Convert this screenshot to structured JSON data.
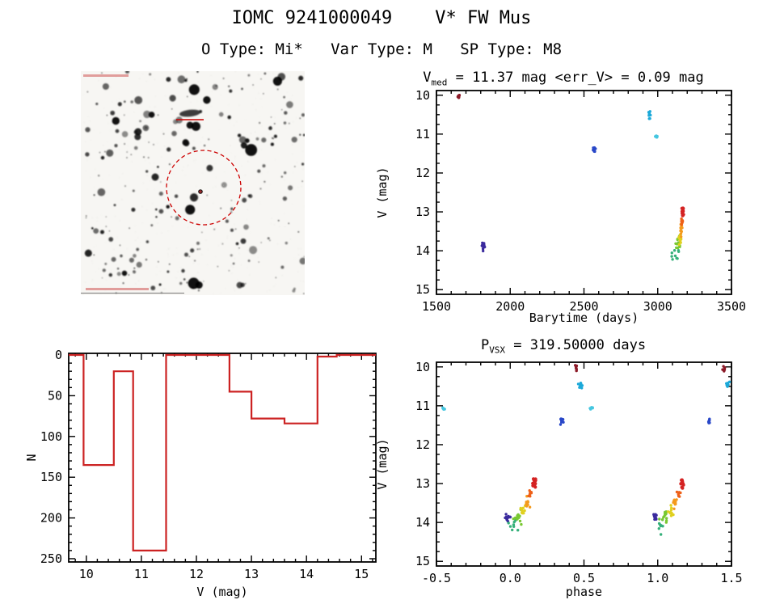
{
  "header": {
    "title": "IOMC 9241000049    V* FW Mus",
    "subtitle": "O Type: Mi*   Var Type: M   SP Type: M8"
  },
  "lightcurve_title": {
    "base": "V",
    "sub": "med",
    "rest": " = 11.37 mag <err_V> = 0.09 mag"
  },
  "phase_title": {
    "base": "P",
    "sub": "VSX",
    "rest": " = 319.50000 days"
  },
  "finder_chart": {
    "content": "grayscale star-field finder image",
    "marker_color": "#cc0000",
    "target_marker": "dashed red circle around target star"
  },
  "chart_data": [
    {
      "id": "lightcurve",
      "type": "scatter",
      "title": "V_med = 11.37 mag <err_V> = 0.09 mag",
      "xlabel": "Barytime (days)",
      "ylabel": "V (mag)",
      "xlim": [
        1500,
        3500
      ],
      "ylim": [
        10,
        15
      ],
      "y_axis_inverted_mag": true,
      "xticks": [
        "1500",
        "2000",
        "2500",
        "3000",
        "3500"
      ],
      "yticks": [
        "10",
        "11",
        "12",
        "13",
        "14",
        "15"
      ],
      "clusters": [
        {
          "x": 1650,
          "y": 10.05,
          "sx": 8,
          "sy": 0.08,
          "n": 8,
          "color": "#8c1a28"
        },
        {
          "x": 1818,
          "y": 13.88,
          "sx": 10,
          "sy": 0.1,
          "n": 16,
          "color": "#3a2a9d"
        },
        {
          "x": 2570,
          "y": 11.4,
          "sx": 8,
          "sy": 0.07,
          "n": 10,
          "color": "#2847c8"
        },
        {
          "x": 2945,
          "y": 10.5,
          "sx": 7,
          "sy": 0.11,
          "n": 12,
          "color": "#1ca9d9"
        },
        {
          "x": 2992,
          "y": 11.07,
          "sx": 7,
          "sy": 0.045,
          "n": 7,
          "color": "#45c6e0"
        },
        {
          "x": 3126,
          "y": 14.12,
          "sx": 22,
          "sy": 0.2,
          "n": 9,
          "color": "#35b07a"
        },
        {
          "x": 3140,
          "y": 13.86,
          "sx": 18,
          "sy": 0.16,
          "n": 14,
          "color": "#79c832"
        },
        {
          "x": 3150,
          "y": 13.7,
          "sx": 13,
          "sy": 0.13,
          "n": 12,
          "color": "#e0d01e"
        },
        {
          "x": 3158,
          "y": 13.5,
          "sx": 9,
          "sy": 0.15,
          "n": 12,
          "color": "#f49a1c"
        },
        {
          "x": 3164,
          "y": 13.24,
          "sx": 7,
          "sy": 0.1,
          "n": 8,
          "color": "#ee6018"
        },
        {
          "x": 3169,
          "y": 12.98,
          "sx": 6,
          "sy": 0.13,
          "n": 14,
          "r": 2.1,
          "color": "#d42222"
        }
      ]
    },
    {
      "id": "histogram",
      "type": "bar",
      "xlabel": "V (mag)",
      "ylabel": "N",
      "xlim": [
        10,
        15
      ],
      "ylim": [
        0,
        250
      ],
      "xticks": [
        "10",
        "11",
        "12",
        "13",
        "14",
        "15"
      ],
      "yticks": [
        "0",
        "50",
        "100",
        "150",
        "200",
        "250"
      ],
      "color": "#cc2222",
      "bins": [
        {
          "x0": 9.95,
          "x1": 10.5,
          "n": 135
        },
        {
          "x0": 10.5,
          "x1": 10.85,
          "n": 20
        },
        {
          "x0": 10.85,
          "x1": 11.45,
          "n": 240
        },
        {
          "x0": 11.45,
          "x1": 12.6,
          "n": 0
        },
        {
          "x0": 12.6,
          "x1": 13.0,
          "n": 45
        },
        {
          "x0": 13.0,
          "x1": 13.6,
          "n": 78
        },
        {
          "x0": 13.6,
          "x1": 14.2,
          "n": 84
        },
        {
          "x0": 14.2,
          "x1": 14.55,
          "n": 2
        }
      ]
    },
    {
      "id": "phase-curve",
      "type": "scatter",
      "title": "P_VSX = 319.50000 days",
      "xlabel": "phase",
      "ylabel": "V (mag)",
      "xlim": [
        -0.5,
        1.5
      ],
      "ylim": [
        10,
        15
      ],
      "y_axis_inverted_mag": true,
      "xticks": [
        "-0.5",
        "0.0",
        "0.5",
        "1.0",
        "1.5"
      ],
      "yticks": [
        "10",
        "11",
        "12",
        "13",
        "14",
        "15"
      ],
      "clusters": [
        {
          "x": -0.02,
          "y": 13.88,
          "sx": 0.018,
          "sy": 0.1,
          "n": 14,
          "color": "#3a2a9d"
        },
        {
          "x": 0.98,
          "y": 13.88,
          "sx": 0.018,
          "sy": 0.1,
          "n": 14,
          "color": "#3a2a9d"
        },
        {
          "x": 0.025,
          "y": 14.1,
          "sx": 0.035,
          "sy": 0.2,
          "n": 8,
          "color": "#35b07a"
        },
        {
          "x": 1.025,
          "y": 14.1,
          "sx": 0.035,
          "sy": 0.2,
          "n": 8,
          "color": "#35b07a"
        },
        {
          "x": 0.05,
          "y": 13.86,
          "sx": 0.028,
          "sy": 0.16,
          "n": 13,
          "color": "#79c832"
        },
        {
          "x": 1.05,
          "y": 13.86,
          "sx": 0.028,
          "sy": 0.16,
          "n": 13,
          "color": "#79c832"
        },
        {
          "x": 0.085,
          "y": 13.7,
          "sx": 0.02,
          "sy": 0.13,
          "n": 11,
          "color": "#e0d01e"
        },
        {
          "x": 1.085,
          "y": 13.7,
          "sx": 0.02,
          "sy": 0.13,
          "n": 11,
          "color": "#e0d01e"
        },
        {
          "x": 0.115,
          "y": 13.5,
          "sx": 0.016,
          "sy": 0.15,
          "n": 11,
          "color": "#f49a1c"
        },
        {
          "x": 1.115,
          "y": 13.5,
          "sx": 0.016,
          "sy": 0.15,
          "n": 11,
          "color": "#f49a1c"
        },
        {
          "x": 0.14,
          "y": 13.24,
          "sx": 0.012,
          "sy": 0.1,
          "n": 7,
          "color": "#ee6018"
        },
        {
          "x": 1.14,
          "y": 13.24,
          "sx": 0.012,
          "sy": 0.1,
          "n": 7,
          "color": "#ee6018"
        },
        {
          "x": 0.165,
          "y": 12.98,
          "sx": 0.011,
          "sy": 0.13,
          "n": 13,
          "r": 2.1,
          "color": "#d42222"
        },
        {
          "x": 1.165,
          "y": 12.98,
          "sx": 0.011,
          "sy": 0.13,
          "n": 13,
          "r": 2.1,
          "color": "#d42222"
        },
        {
          "x": 0.35,
          "y": 11.4,
          "sx": 0.013,
          "sy": 0.07,
          "n": 9,
          "color": "#2847c8"
        },
        {
          "x": 1.35,
          "y": 11.4,
          "sx": 0.013,
          "sy": 0.07,
          "n": 9,
          "color": "#2847c8"
        },
        {
          "x": 0.45,
          "y": 10.05,
          "sx": 0.011,
          "sy": 0.08,
          "n": 7,
          "color": "#8c1a28"
        },
        {
          "x": 1.45,
          "y": 10.05,
          "sx": 0.011,
          "sy": 0.08,
          "n": 7,
          "color": "#8c1a28"
        },
        {
          "x": 0.475,
          "y": 10.5,
          "sx": 0.011,
          "sy": 0.11,
          "n": 10,
          "color": "#1ca9d9"
        },
        {
          "x": 1.475,
          "y": 10.5,
          "sx": 0.011,
          "sy": 0.11,
          "n": 10,
          "color": "#1ca9d9"
        },
        {
          "x": 0.55,
          "y": 11.07,
          "sx": 0.011,
          "sy": 0.045,
          "n": 6,
          "color": "#45c6e0"
        },
        {
          "x": -0.45,
          "y": 11.07,
          "sx": 0.011,
          "sy": 0.045,
          "n": 6,
          "color": "#45c6e0"
        }
      ]
    }
  ]
}
